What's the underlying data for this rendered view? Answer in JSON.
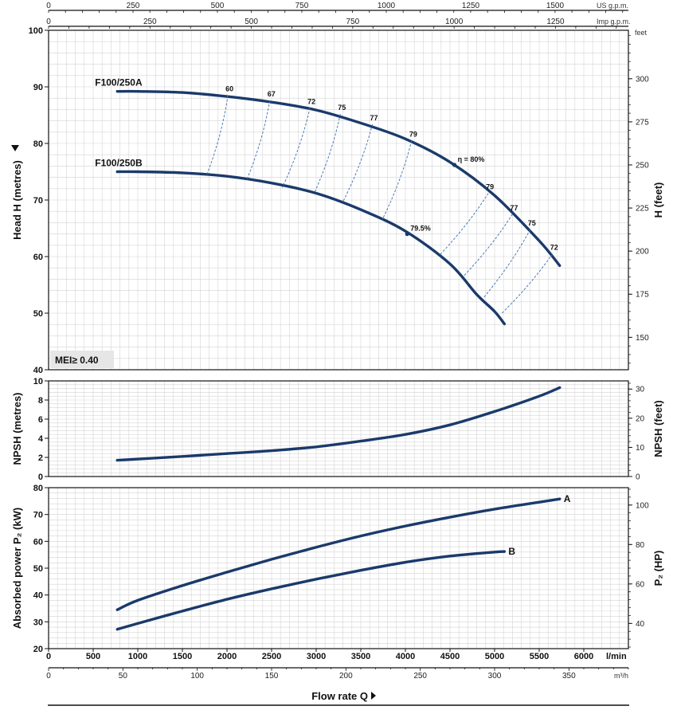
{
  "chart_data": [
    {
      "type": "line",
      "ylabel_left": "Head H  (metres)",
      "ylabel_right": "H  (feet)",
      "ylim": [
        40,
        100
      ],
      "yticks": [
        40,
        50,
        60,
        70,
        80,
        90,
        100
      ],
      "right_ylim_feet": [
        131.2,
        328.1
      ],
      "right_yticks": [
        150,
        175,
        200,
        225,
        250,
        275,
        300
      ],
      "right_unit": "feet",
      "badge": "MEI≥ 0.40",
      "series": [
        {
          "name": "F100/250A",
          "x": [
            770,
            1000,
            1500,
            2000,
            2500,
            3000,
            3500,
            4000,
            4500,
            5000,
            5500,
            5730
          ],
          "y": [
            89.2,
            89.2,
            89.0,
            88.3,
            87.3,
            85.9,
            83.6,
            80.8,
            76.7,
            70.8,
            62.8,
            58.4
          ]
        },
        {
          "name": "F100/250B",
          "x": [
            770,
            1000,
            1500,
            2000,
            2500,
            3000,
            3500,
            4000,
            4500,
            4800,
            5000,
            5110
          ],
          "y": [
            75.0,
            75.0,
            74.8,
            74.2,
            73.0,
            71.2,
            68.3,
            64.5,
            58.7,
            53.3,
            50.3,
            48.1
          ]
        }
      ],
      "efficiency_lines": [
        {
          "label": "60",
          "a": [
            2010,
            88.5
          ],
          "b": [
            1770,
            74.3
          ]
        },
        {
          "label": "67",
          "a": [
            2480,
            87.6
          ],
          "b": [
            2220,
            73.5
          ]
        },
        {
          "label": "72",
          "a": [
            2930,
            86.3
          ],
          "b": [
            2620,
            72.2
          ]
        },
        {
          "label": "75",
          "a": [
            3270,
            85.2
          ],
          "b": [
            2980,
            71.3
          ]
        },
        {
          "label": "77",
          "a": [
            3630,
            83.4
          ],
          "b": [
            3300,
            69.7
          ]
        },
        {
          "label": "79",
          "a": [
            4070,
            80.5
          ],
          "b": [
            3740,
            66.5
          ]
        },
        {
          "label": "79",
          "a": [
            4930,
            71.2
          ],
          "b": [
            4380,
            60.2
          ]
        },
        {
          "label": "77",
          "a": [
            5200,
            67.5
          ],
          "b": [
            4650,
            56.5
          ]
        },
        {
          "label": "75",
          "a": [
            5400,
            64.8
          ],
          "b": [
            4880,
            52.8
          ]
        },
        {
          "label": "72",
          "a": [
            5650,
            60.5
          ],
          "b": [
            5070,
            49.8
          ]
        }
      ],
      "best_efficiency": [
        {
          "label": "η = 80%",
          "x": 4550,
          "y": 76.2
        },
        {
          "label": "79.5%",
          "x": 4020,
          "y": 64.0
        }
      ]
    },
    {
      "type": "line",
      "ylabel_left": "NPSH  (metres)",
      "ylabel_right": "NPSH  (feet)",
      "ylim": [
        0,
        10
      ],
      "yticks": [
        0,
        2,
        4,
        6,
        8,
        10
      ],
      "right_ylim_feet": [
        0,
        32.8
      ],
      "right_yticks": [
        0,
        10,
        20,
        30
      ],
      "series": [
        {
          "x": [
            770,
            1500,
            2000,
            2500,
            3000,
            3500,
            4000,
            4500,
            5000,
            5500,
            5730
          ],
          "y": [
            1.7,
            2.1,
            2.4,
            2.7,
            3.1,
            3.7,
            4.4,
            5.4,
            6.8,
            8.4,
            9.3
          ]
        }
      ]
    },
    {
      "type": "line",
      "ylabel_left": "Absorbed power  P₂  (kW)",
      "ylabel_right": "P₂  (HP)",
      "ylim": [
        20,
        80
      ],
      "yticks": [
        20,
        30,
        40,
        50,
        60,
        70,
        80
      ],
      "right_ylim_hp": [
        27.2,
        108.8
      ],
      "right_yticks": [
        40,
        60,
        80,
        100
      ],
      "series": [
        {
          "name": "A",
          "x": [
            770,
            1000,
            1500,
            2000,
            2500,
            3000,
            3500,
            4000,
            4500,
            5000,
            5500,
            5730
          ],
          "y": [
            34.5,
            38.0,
            43.5,
            48.5,
            53.3,
            57.8,
            62.0,
            65.7,
            69.0,
            72.0,
            74.6,
            75.8
          ]
        },
        {
          "name": "B",
          "x": [
            770,
            1000,
            1500,
            2000,
            2500,
            3000,
            3500,
            4000,
            4500,
            5000,
            5110
          ],
          "y": [
            27.2,
            29.4,
            34.0,
            38.4,
            42.3,
            45.9,
            49.2,
            52.2,
            54.5,
            56.0,
            56.2
          ]
        }
      ]
    }
  ],
  "x_axes": {
    "lpm": {
      "ticks": [
        0,
        500,
        1000,
        1500,
        2000,
        2500,
        3000,
        3500,
        4000,
        4500,
        5000,
        5500,
        6000
      ],
      "unit": "l/min",
      "xlim": [
        0,
        6500
      ]
    },
    "m3h": {
      "ticks": [
        0,
        50,
        100,
        150,
        200,
        250,
        300,
        350
      ],
      "unit": "m³/h"
    },
    "usgpm": {
      "ticks": [
        0,
        250,
        500,
        750,
        1000,
        1250,
        1500
      ],
      "unit": "US g.p.m."
    },
    "impgpm": {
      "ticks": [
        0,
        250,
        500,
        750,
        1000,
        1250
      ],
      "unit": "Imp g.p.m."
    },
    "title": "Flow rate Q"
  }
}
